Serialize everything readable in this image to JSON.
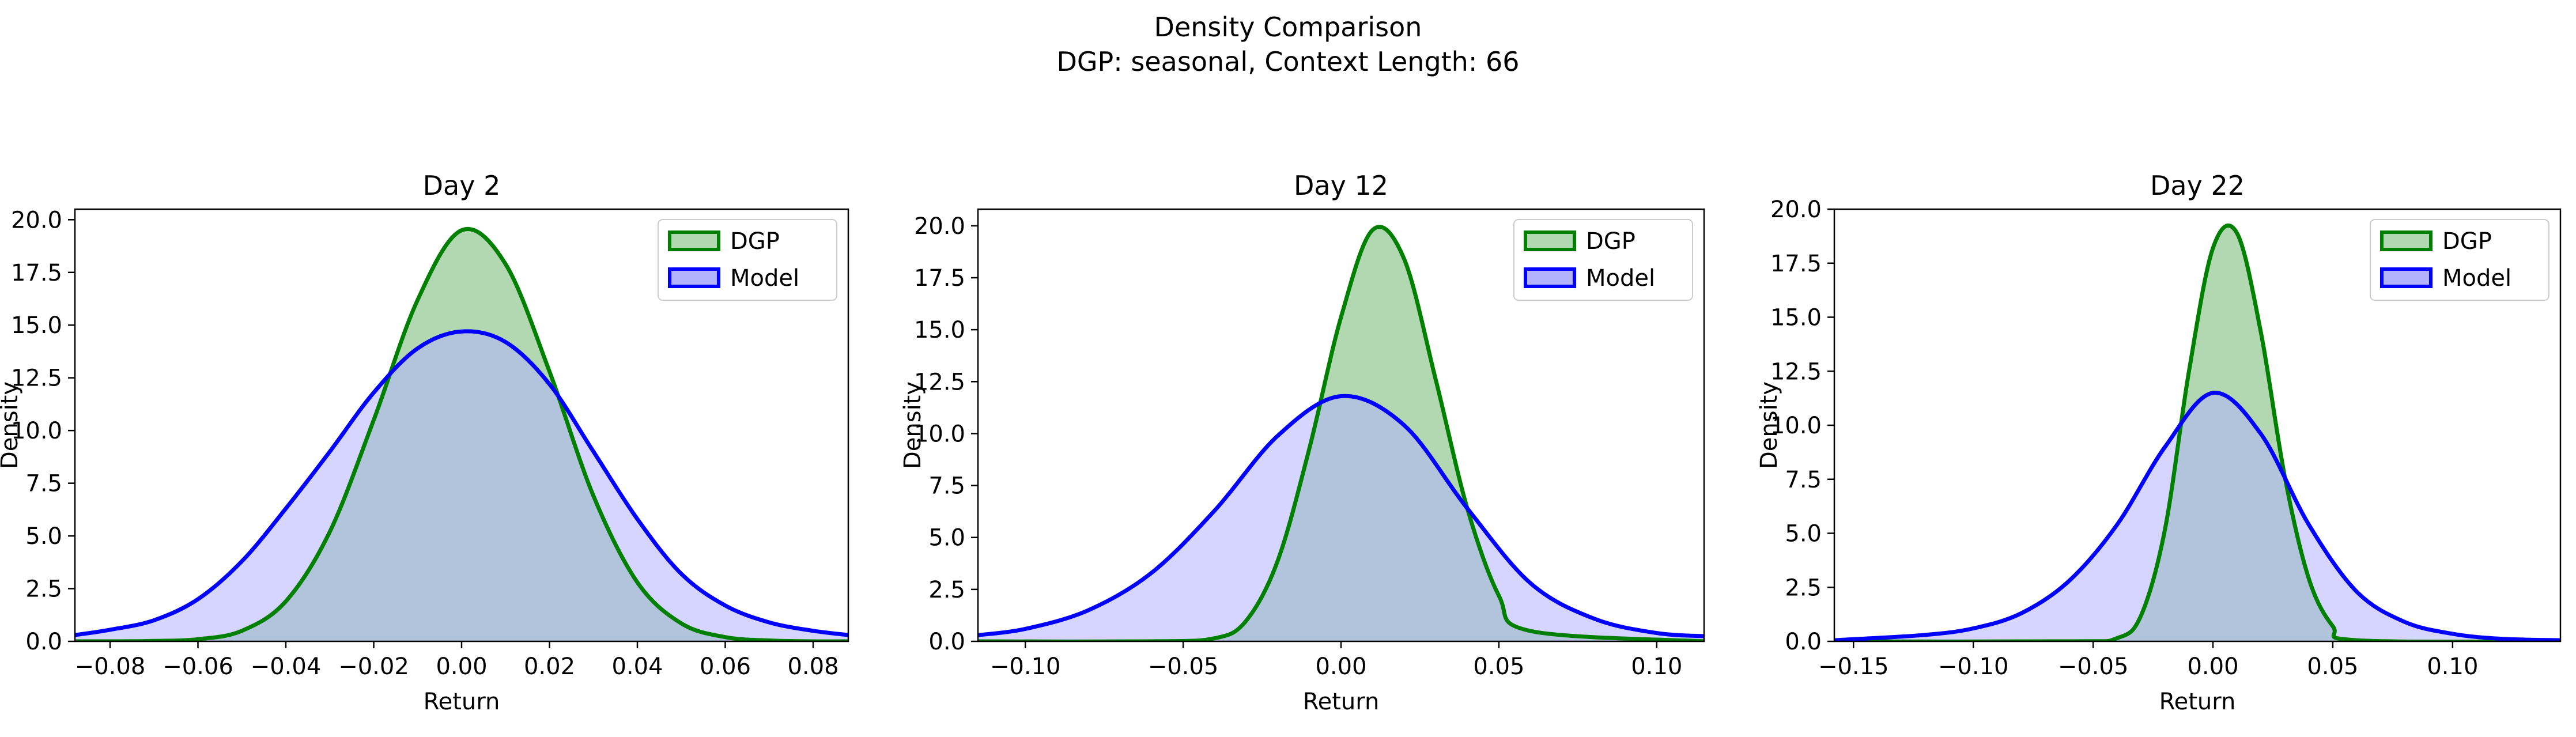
{
  "figure": {
    "title_line1": "Density Comparison",
    "title_line2": "DGP: seasonal, Context Length: 66"
  },
  "colors": {
    "dgp_line": "#008000",
    "dgp_fill": "#b2d8b2",
    "model_line": "#0000ff",
    "model_fill": "#b2b2ff",
    "overlap_fill": "#7f9ac8"
  },
  "chart_data": [
    {
      "type": "area",
      "title": "Day 2",
      "xlabel": "Return",
      "ylabel": "Density",
      "xlim": [
        -0.088,
        0.088
      ],
      "ylim": [
        0,
        20.5
      ],
      "xticks": [
        -0.08,
        -0.06,
        -0.04,
        -0.02,
        0.0,
        0.02,
        0.04,
        0.06,
        0.08
      ],
      "xtick_labels": [
        "−0.08",
        "−0.06",
        "−0.04",
        "−0.02",
        "0.00",
        "0.02",
        "0.04",
        "0.06",
        "0.08"
      ],
      "yticks": [
        0,
        2.5,
        5,
        7.5,
        10,
        12.5,
        15,
        17.5,
        20
      ],
      "ytick_labels": [
        "0.0",
        "2.5",
        "5.0",
        "7.5",
        "10.0",
        "12.5",
        "15.0",
        "17.5",
        "20.0"
      ],
      "legend": {
        "position": "top-right",
        "entries": [
          "DGP",
          "Model"
        ]
      },
      "series": [
        {
          "name": "DGP",
          "x": [
            -0.088,
            -0.08,
            -0.07,
            -0.06,
            -0.05,
            -0.04,
            -0.03,
            -0.02,
            -0.01,
            0.0,
            0.01,
            0.02,
            0.03,
            0.04,
            0.05,
            0.06,
            0.07,
            0.08,
            0.088
          ],
          "y": [
            0.0,
            0.0,
            0.02,
            0.1,
            0.5,
            1.9,
            5.2,
            10.5,
            16.2,
            19.5,
            17.9,
            12.8,
            6.9,
            2.8,
            0.85,
            0.2,
            0.04,
            0.0,
            0.0
          ]
        },
        {
          "name": "Model",
          "x": [
            -0.088,
            -0.08,
            -0.07,
            -0.06,
            -0.05,
            -0.04,
            -0.03,
            -0.02,
            -0.01,
            0.0,
            0.01,
            0.02,
            0.03,
            0.04,
            0.05,
            0.06,
            0.07,
            0.08,
            0.088
          ],
          "y": [
            0.3,
            0.55,
            1.0,
            2.0,
            3.8,
            6.3,
            9.0,
            11.8,
            13.9,
            14.7,
            14.2,
            12.2,
            9.0,
            5.8,
            3.2,
            1.7,
            0.9,
            0.5,
            0.3
          ]
        }
      ]
    },
    {
      "type": "area",
      "title": "Day 12",
      "xlabel": "Return",
      "ylabel": "Density",
      "xlim": [
        -0.115,
        0.115
      ],
      "ylim": [
        0,
        20.8
      ],
      "xticks": [
        -0.1,
        -0.05,
        0.0,
        0.05,
        0.1
      ],
      "xtick_labels": [
        "−0.10",
        "−0.05",
        "0.00",
        "0.05",
        "0.10"
      ],
      "yticks": [
        0,
        2.5,
        5,
        7.5,
        10,
        12.5,
        15,
        17.5,
        20
      ],
      "ytick_labels": [
        "0.0",
        "2.5",
        "5.0",
        "7.5",
        "10.0",
        "12.5",
        "15.0",
        "17.5",
        "20.0"
      ],
      "legend": {
        "position": "top-right",
        "entries": [
          "DGP",
          "Model"
        ]
      },
      "series": [
        {
          "name": "DGP",
          "x": [
            -0.115,
            -0.06,
            -0.04,
            -0.03,
            -0.02,
            -0.01,
            0.0,
            0.01,
            0.02,
            0.03,
            0.04,
            0.05,
            0.06,
            0.115
          ],
          "y": [
            0.0,
            0.0,
            0.15,
            1.0,
            3.9,
            9.3,
            15.6,
            19.8,
            18.4,
            12.6,
            6.4,
            2.2,
            0.5,
            0.0
          ]
        },
        {
          "name": "Model",
          "x": [
            -0.115,
            -0.1,
            -0.08,
            -0.06,
            -0.04,
            -0.02,
            0.0,
            0.02,
            0.04,
            0.06,
            0.08,
            0.1,
            0.115
          ],
          "y": [
            0.3,
            0.6,
            1.5,
            3.3,
            6.3,
            9.9,
            11.8,
            10.4,
            6.4,
            2.8,
            1.1,
            0.4,
            0.25
          ]
        }
      ]
    },
    {
      "type": "area",
      "title": "Day 22",
      "xlabel": "Return",
      "ylabel": "Density",
      "xlim": [
        -0.158,
        0.145
      ],
      "ylim": [
        0,
        20.0
      ],
      "xticks": [
        -0.15,
        -0.1,
        -0.05,
        0.0,
        0.05,
        0.1
      ],
      "xtick_labels": [
        "−0.15",
        "−0.10",
        "−0.05",
        "0.00",
        "0.05",
        "0.10"
      ],
      "yticks": [
        0,
        2.5,
        5,
        7.5,
        10,
        12.5,
        15,
        17.5,
        20
      ],
      "ytick_labels": [
        "0.0",
        "2.5",
        "5.0",
        "7.5",
        "10.0",
        "12.5",
        "15.0",
        "17.5",
        "20.0"
      ],
      "legend": {
        "position": "top-right",
        "entries": [
          "DGP",
          "Model"
        ]
      },
      "series": [
        {
          "name": "DGP",
          "x": [
            -0.158,
            -0.06,
            -0.04,
            -0.03,
            -0.02,
            -0.01,
            0.0,
            0.01,
            0.02,
            0.03,
            0.04,
            0.05,
            0.06,
            0.145
          ],
          "y": [
            0.0,
            0.0,
            0.15,
            1.2,
            5.2,
            12.5,
            18.2,
            18.9,
            14.3,
            7.6,
            2.9,
            0.7,
            0.05,
            0.0
          ]
        },
        {
          "name": "Model",
          "x": [
            -0.158,
            -0.15,
            -0.12,
            -0.1,
            -0.08,
            -0.06,
            -0.04,
            -0.02,
            0.0,
            0.02,
            0.04,
            0.06,
            0.08,
            0.1,
            0.12,
            0.145
          ],
          "y": [
            0.05,
            0.1,
            0.3,
            0.6,
            1.3,
            2.8,
            5.4,
            9.0,
            11.5,
            9.6,
            5.4,
            2.3,
            0.9,
            0.35,
            0.12,
            0.05
          ]
        }
      ]
    }
  ]
}
